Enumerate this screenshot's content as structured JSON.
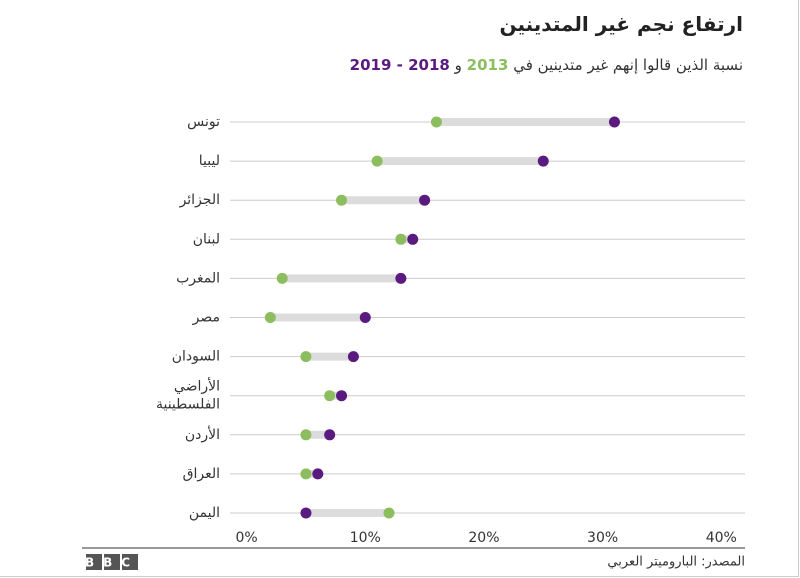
{
  "chart_data": {
    "type": "dumbbell",
    "title": "ارتفاع نجم غير المتدينين",
    "subtitle": "نسبة الذين قالوا إنهم غير متدينين في",
    "subtitle_joiner": "و",
    "categories": [
      "تونس",
      "ليبيا",
      "الجزائر",
      "لبنان",
      "المغرب",
      "مصر",
      "السودان",
      "الأراضي الفلسطينية",
      "الأردن",
      "العراق",
      "اليمن"
    ],
    "series": [
      {
        "name": "2013",
        "color": "#8cbd5f",
        "values": [
          16,
          11,
          8,
          13,
          3,
          2,
          5,
          7,
          5,
          5,
          12
        ]
      },
      {
        "name": "2018 - 2019",
        "color": "#5a1a7f",
        "values": [
          31,
          25,
          15,
          14,
          13,
          10,
          9,
          8,
          7,
          6,
          5
        ]
      }
    ],
    "xlim": [
      -1.4,
      42
    ],
    "xticks": [
      {
        "value": 0,
        "label": "0%"
      },
      {
        "value": 10,
        "label": "10%"
      },
      {
        "value": 20,
        "label": "20%"
      },
      {
        "value": 30,
        "label": "30%"
      },
      {
        "value": 40,
        "label": "40%"
      }
    ],
    "source": "المصدر: الباروميتر العربي",
    "logo": "BBC"
  }
}
